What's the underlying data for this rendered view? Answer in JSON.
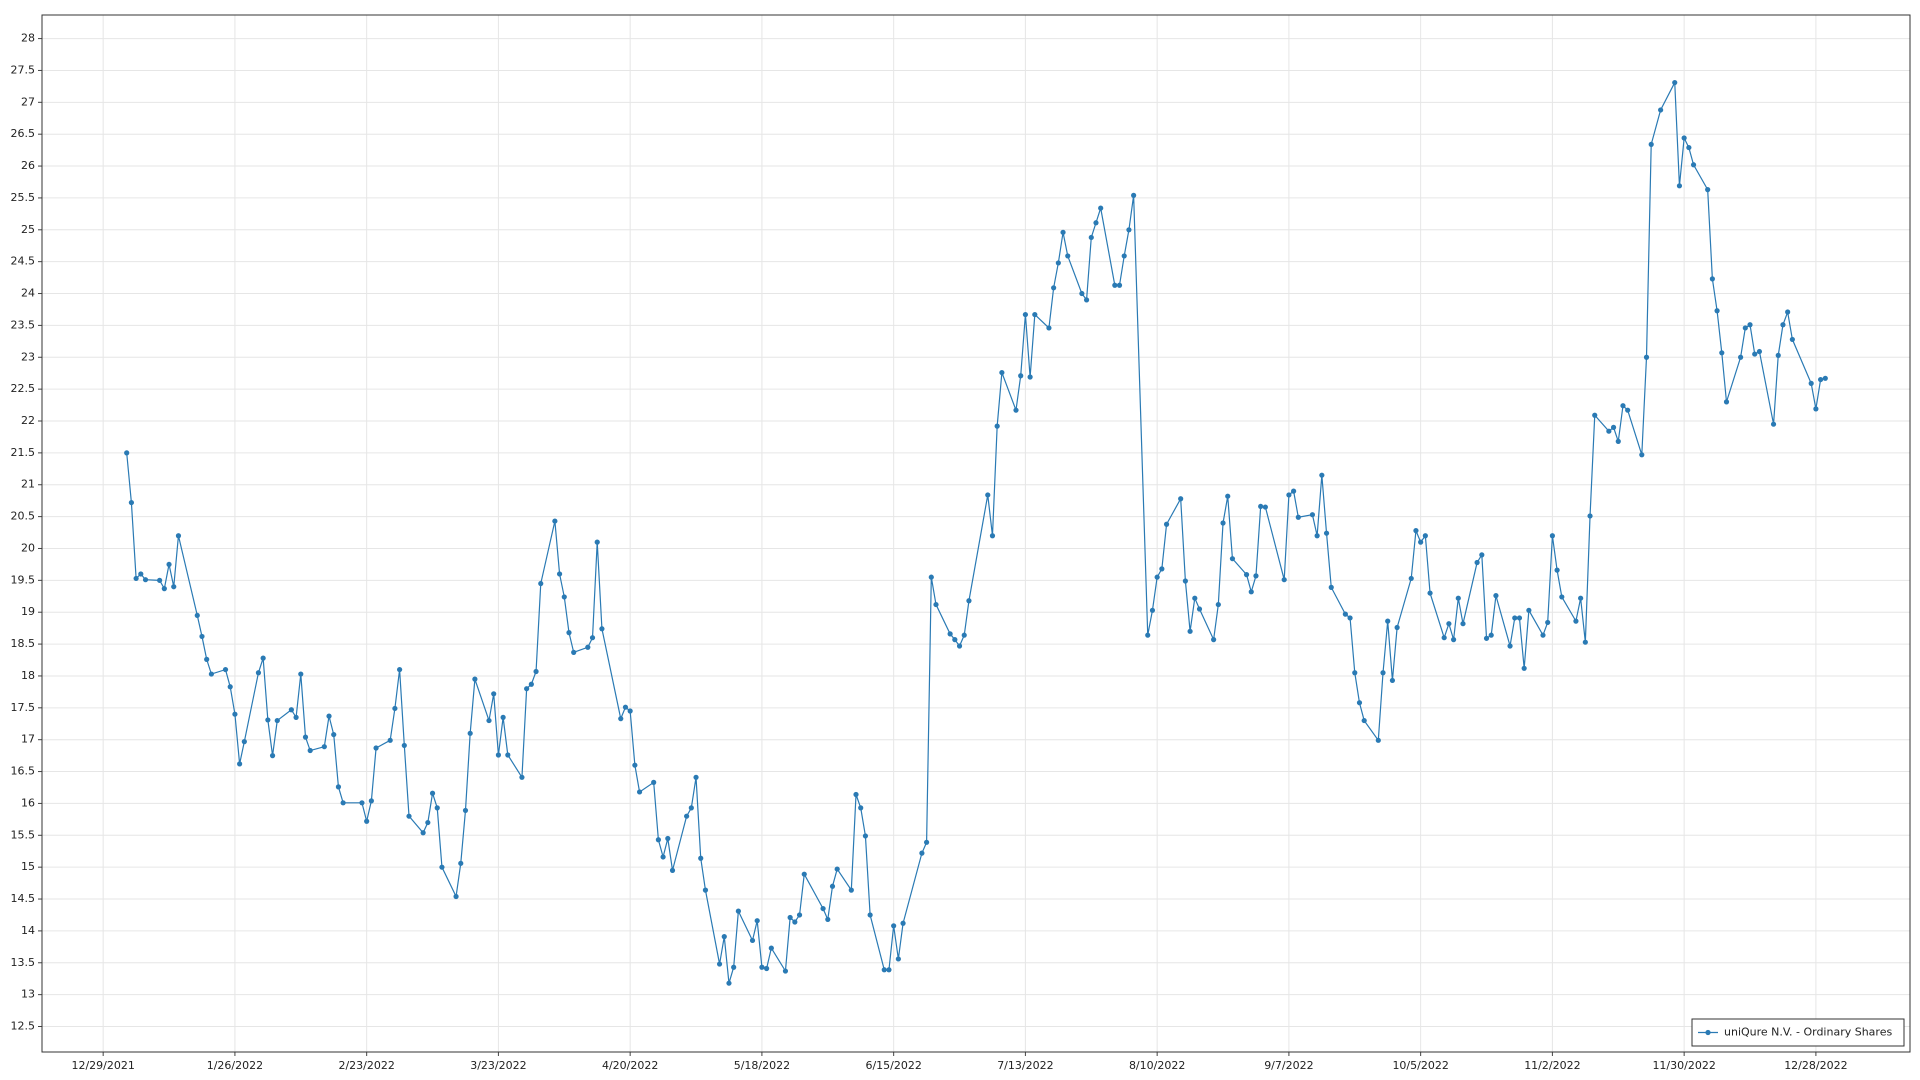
{
  "chart_data": {
    "type": "line",
    "legend": "lower right",
    "grid": true,
    "xlim": [
      "12/16/2021",
      "1/17/2023"
    ],
    "xticks": [
      "12/29/2021",
      "1/26/2022",
      "2/23/2022",
      "3/23/2022",
      "4/20/2022",
      "5/18/2022",
      "6/15/2022",
      "7/13/2022",
      "8/10/2022",
      "9/7/2022",
      "10/5/2022",
      "11/2/2022",
      "11/30/2022",
      "12/28/2022"
    ],
    "ylim": [
      12.1,
      28.37
    ],
    "yticks": [
      12.5,
      13,
      13.5,
      14,
      14.5,
      15,
      15.5,
      16,
      16.5,
      17,
      17.5,
      18,
      18.5,
      19,
      19.5,
      20,
      20.5,
      21,
      21.5,
      22,
      22.5,
      23,
      23.5,
      24,
      24.5,
      25,
      25.5,
      26,
      26.5,
      27,
      27.5,
      28
    ],
    "x": [
      "1/3/2022",
      "1/4/2022",
      "1/5/2022",
      "1/6/2022",
      "1/7/2022",
      "1/10/2022",
      "1/11/2022",
      "1/12/2022",
      "1/13/2022",
      "1/14/2022",
      "1/18/2022",
      "1/19/2022",
      "1/20/2022",
      "1/21/2022",
      "1/24/2022",
      "1/25/2022",
      "1/26/2022",
      "1/27/2022",
      "1/28/2022",
      "1/31/2022",
      "2/1/2022",
      "2/2/2022",
      "2/3/2022",
      "2/4/2022",
      "2/7/2022",
      "2/8/2022",
      "2/9/2022",
      "2/10/2022",
      "2/11/2022",
      "2/14/2022",
      "2/15/2022",
      "2/16/2022",
      "2/17/2022",
      "2/18/2022",
      "2/22/2022",
      "2/23/2022",
      "2/24/2022",
      "2/25/2022",
      "2/28/2022",
      "3/1/2022",
      "3/2/2022",
      "3/3/2022",
      "3/4/2022",
      "3/7/2022",
      "3/8/2022",
      "3/9/2022",
      "3/10/2022",
      "3/11/2022",
      "3/14/2022",
      "3/15/2022",
      "3/16/2022",
      "3/17/2022",
      "3/18/2022",
      "3/21/2022",
      "3/22/2022",
      "3/23/2022",
      "3/24/2022",
      "3/25/2022",
      "3/28/2022",
      "3/29/2022",
      "3/30/2022",
      "3/31/2022",
      "4/1/2022",
      "4/4/2022",
      "4/5/2022",
      "4/6/2022",
      "4/7/2022",
      "4/8/2022",
      "4/11/2022",
      "4/12/2022",
      "4/13/2022",
      "4/14/2022",
      "4/18/2022",
      "4/19/2022",
      "4/20/2022",
      "4/21/2022",
      "4/22/2022",
      "4/25/2022",
      "4/26/2022",
      "4/27/2022",
      "4/28/2022",
      "4/29/2022",
      "5/2/2022",
      "5/3/2022",
      "5/4/2022",
      "5/5/2022",
      "5/6/2022",
      "5/9/2022",
      "5/10/2022",
      "5/11/2022",
      "5/12/2022",
      "5/13/2022",
      "5/16/2022",
      "5/17/2022",
      "5/18/2022",
      "5/19/2022",
      "5/20/2022",
      "5/23/2022",
      "5/24/2022",
      "5/25/2022",
      "5/26/2022",
      "5/27/2022",
      "5/31/2022",
      "6/1/2022",
      "6/2/2022",
      "6/3/2022",
      "6/6/2022",
      "6/7/2022",
      "6/8/2022",
      "6/9/2022",
      "6/10/2022",
      "6/13/2022",
      "6/14/2022",
      "6/15/2022",
      "6/16/2022",
      "6/17/2022",
      "6/21/2022",
      "6/22/2022",
      "6/23/2022",
      "6/24/2022",
      "6/27/2022",
      "6/28/2022",
      "6/29/2022",
      "6/30/2022",
      "7/1/2022",
      "7/5/2022",
      "7/6/2022",
      "7/7/2022",
      "7/8/2022",
      "7/11/2022",
      "7/12/2022",
      "7/13/2022",
      "7/14/2022",
      "7/15/2022",
      "7/18/2022",
      "7/19/2022",
      "7/20/2022",
      "7/21/2022",
      "7/22/2022",
      "7/25/2022",
      "7/26/2022",
      "7/27/2022",
      "7/28/2022",
      "7/29/2022",
      "8/1/2022",
      "8/2/2022",
      "8/3/2022",
      "8/4/2022",
      "8/5/2022",
      "8/8/2022",
      "8/9/2022",
      "8/10/2022",
      "8/11/2022",
      "8/12/2022",
      "8/15/2022",
      "8/16/2022",
      "8/17/2022",
      "8/18/2022",
      "8/19/2022",
      "8/22/2022",
      "8/23/2022",
      "8/24/2022",
      "8/25/2022",
      "8/26/2022",
      "8/29/2022",
      "8/30/2022",
      "8/31/2022",
      "9/1/2022",
      "9/2/2022",
      "9/6/2022",
      "9/7/2022",
      "9/8/2022",
      "9/9/2022",
      "9/12/2022",
      "9/13/2022",
      "9/14/2022",
      "9/15/2022",
      "9/16/2022",
      "9/19/2022",
      "9/20/2022",
      "9/21/2022",
      "9/22/2022",
      "9/23/2022",
      "9/26/2022",
      "9/27/2022",
      "9/28/2022",
      "9/29/2022",
      "9/30/2022",
      "10/3/2022",
      "10/4/2022",
      "10/5/2022",
      "10/6/2022",
      "10/7/2022",
      "10/10/2022",
      "10/11/2022",
      "10/12/2022",
      "10/13/2022",
      "10/14/2022",
      "10/17/2022",
      "10/18/2022",
      "10/19/2022",
      "10/20/2022",
      "10/21/2022",
      "10/24/2022",
      "10/25/2022",
      "10/26/2022",
      "10/27/2022",
      "10/28/2022",
      "10/31/2022",
      "11/1/2022",
      "11/2/2022",
      "11/3/2022",
      "11/4/2022",
      "11/7/2022",
      "11/8/2022",
      "11/9/2022",
      "11/10/2022",
      "11/11/2022",
      "11/14/2022",
      "11/15/2022",
      "11/16/2022",
      "11/17/2022",
      "11/18/2022",
      "11/21/2022",
      "11/22/2022",
      "11/23/2022",
      "11/25/2022",
      "11/28/2022",
      "11/29/2022",
      "11/30/2022",
      "12/1/2022",
      "12/2/2022",
      "12/5/2022",
      "12/6/2022",
      "12/7/2022",
      "12/8/2022",
      "12/9/2022",
      "12/12/2022",
      "12/13/2022",
      "12/14/2022",
      "12/15/2022",
      "12/16/2022",
      "12/19/2022",
      "12/20/2022",
      "12/21/2022",
      "12/22/2022",
      "12/23/2022",
      "12/27/2022",
      "12/28/2022",
      "12/29/2022",
      "12/30/2022"
    ],
    "series": [
      {
        "name": "uniQure N.V. - Ordinary Shares",
        "color": "#2a7ab4",
        "values": [
          21.5,
          20.72,
          19.53,
          19.6,
          19.51,
          19.5,
          19.37,
          19.75,
          19.4,
          20.2,
          18.95,
          18.62,
          18.26,
          18.03,
          18.1,
          17.83,
          17.4,
          16.62,
          16.97,
          18.05,
          18.28,
          17.31,
          16.75,
          17.3,
          17.47,
          17.35,
          18.03,
          17.04,
          16.83,
          16.89,
          17.37,
          17.08,
          16.26,
          16.01,
          16.01,
          15.72,
          16.04,
          16.87,
          16.99,
          17.49,
          18.1,
          16.91,
          15.8,
          15.54,
          15.7,
          16.16,
          15.93,
          15.0,
          14.54,
          15.06,
          15.89,
          17.1,
          17.95,
          17.3,
          17.72,
          16.76,
          17.35,
          16.76,
          16.41,
          17.8,
          17.87,
          18.07,
          19.45,
          20.43,
          19.6,
          19.24,
          18.68,
          18.37,
          18.45,
          18.6,
          20.1,
          18.74,
          17.33,
          17.51,
          17.45,
          16.6,
          16.18,
          16.33,
          15.43,
          15.16,
          15.45,
          14.95,
          15.8,
          15.93,
          16.41,
          15.14,
          14.64,
          13.48,
          13.91,
          13.18,
          13.43,
          14.31,
          13.85,
          14.16,
          13.43,
          13.41,
          13.73,
          13.37,
          14.21,
          14.14,
          14.25,
          14.89,
          14.35,
          14.18,
          14.7,
          14.97,
          14.64,
          16.14,
          15.93,
          15.49,
          14.25,
          13.39,
          13.39,
          14.08,
          13.56,
          14.12,
          15.22,
          15.39,
          19.55,
          19.12,
          18.66,
          18.57,
          18.47,
          18.64,
          19.18,
          20.84,
          20.2,
          21.92,
          22.76,
          22.17,
          22.71,
          23.67,
          22.69,
          23.67,
          23.46,
          24.09,
          24.48,
          24.96,
          24.59,
          24.0,
          23.9,
          24.88,
          25.11,
          25.34,
          24.13,
          24.13,
          24.59,
          25.0,
          25.54,
          18.64,
          19.03,
          19.55,
          19.68,
          20.38,
          20.78,
          19.49,
          18.7,
          19.22,
          19.05,
          18.57,
          19.12,
          20.4,
          20.82,
          19.84,
          19.59,
          19.32,
          19.57,
          20.66,
          20.65,
          19.51,
          20.84,
          20.9,
          20.49,
          20.53,
          20.2,
          21.15,
          20.24,
          19.39,
          18.97,
          18.91,
          18.05,
          17.58,
          17.3,
          16.99,
          18.05,
          18.86,
          17.93,
          18.76,
          19.53,
          20.28,
          20.1,
          20.2,
          19.3,
          18.6,
          18.82,
          18.57,
          19.22,
          18.82,
          19.78,
          19.9,
          18.59,
          18.64,
          19.26,
          18.47,
          18.91,
          18.91,
          18.12,
          19.03,
          18.64,
          18.84,
          20.2,
          19.66,
          19.24,
          18.86,
          19.22,
          18.53,
          20.51,
          22.09,
          21.84,
          21.9,
          21.68,
          22.24,
          22.17,
          21.47,
          23.0,
          26.34,
          26.88,
          27.31,
          25.69,
          26.44,
          26.29,
          26.02,
          25.63,
          24.23,
          23.73,
          23.07,
          22.3,
          23.0,
          23.46,
          23.51,
          23.05,
          23.09,
          21.95,
          23.03,
          23.51,
          23.71,
          23.28,
          22.59,
          22.19,
          22.65,
          22.67
        ]
      }
    ]
  }
}
